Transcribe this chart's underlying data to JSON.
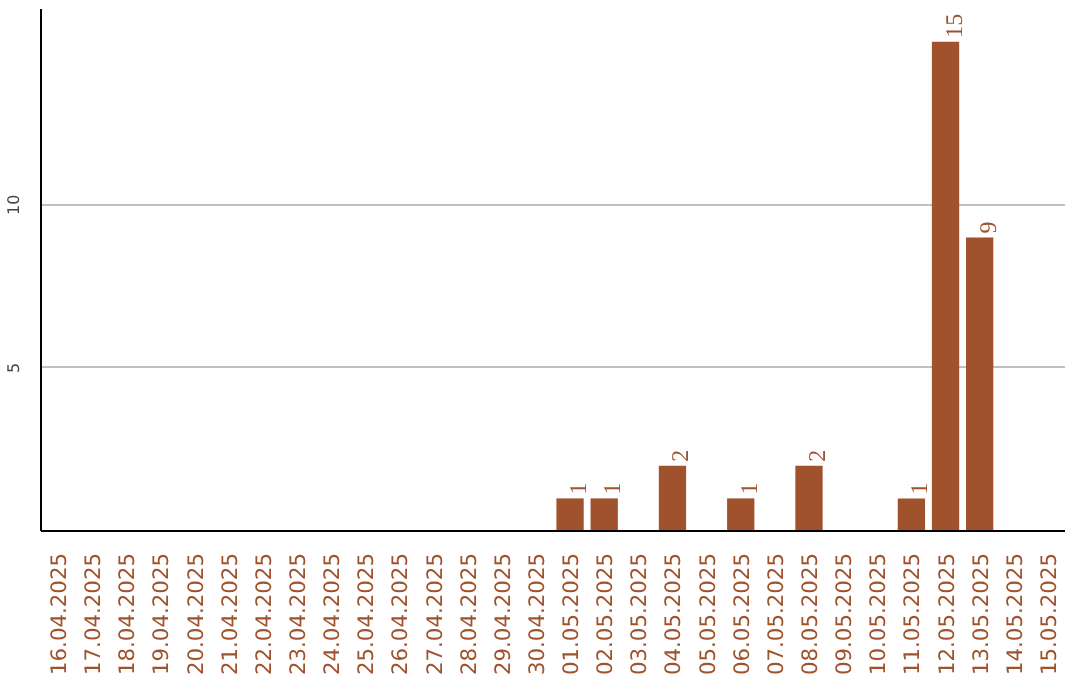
{
  "chart_data": {
    "type": "bar",
    "categories": [
      "16.04.2025",
      "17.04.2025",
      "18.04.2025",
      "19.04.2025",
      "20.04.2025",
      "21.04.2025",
      "22.04.2025",
      "23.04.2025",
      "24.04.2025",
      "25.04.2025",
      "26.04.2025",
      "27.04.2025",
      "28.04.2025",
      "29.04.2025",
      "30.04.2025",
      "01.05.2025",
      "02.05.2025",
      "03.05.2025",
      "04.05.2025",
      "05.05.2025",
      "06.05.2025",
      "07.05.2025",
      "08.05.2025",
      "09.05.2025",
      "10.05.2025",
      "11.05.2025",
      "12.05.2025",
      "13.05.2025",
      "14.05.2025",
      "15.05.2025"
    ],
    "values": [
      0,
      0,
      0,
      0,
      0,
      0,
      0,
      0,
      0,
      0,
      0,
      0,
      0,
      0,
      0,
      1,
      1,
      0,
      2,
      0,
      1,
      0,
      2,
      0,
      0,
      1,
      15,
      9,
      0,
      0
    ],
    "value_labels": [
      null,
      null,
      null,
      null,
      null,
      null,
      null,
      null,
      null,
      null,
      null,
      null,
      null,
      null,
      null,
      "1",
      "1",
      null,
      "2",
      null,
      "1",
      null,
      "2",
      null,
      null,
      "1",
      "15",
      "9",
      null,
      null
    ],
    "color": "#a0522d",
    "ylim": [
      0,
      16
    ],
    "yticks": [
      5,
      10
    ],
    "grid": "y"
  }
}
